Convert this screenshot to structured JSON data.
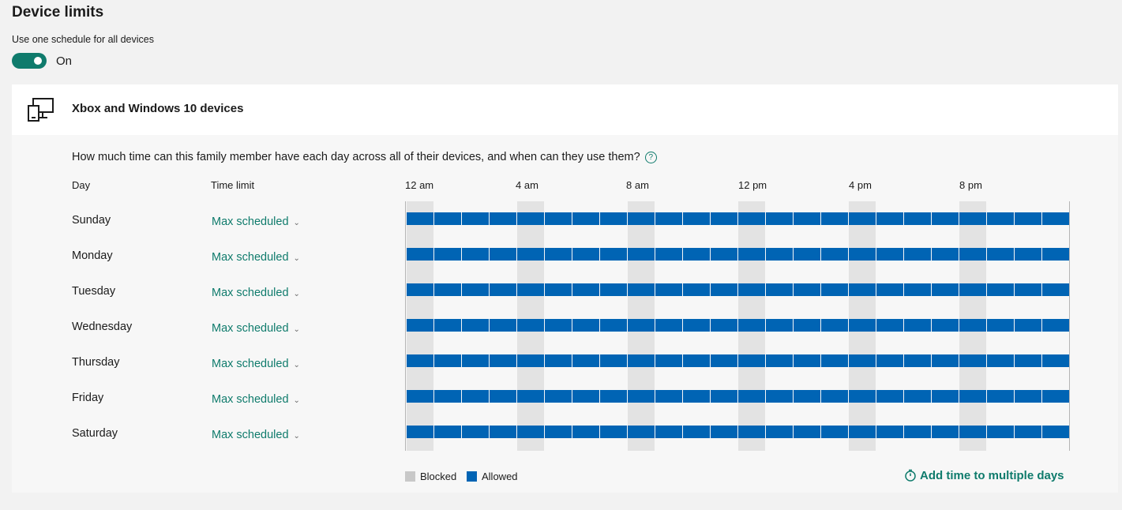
{
  "page": {
    "title": "Device limits"
  },
  "schedule_toggle": {
    "label": "Use one schedule for all devices",
    "state_label": "On",
    "on": true
  },
  "card": {
    "title": "Xbox and Windows 10 devices",
    "icon": "devices-icon",
    "question": "How much time can this family member have each day across all of their devices, and when can they use them?",
    "help_icon": "question-circle-icon"
  },
  "table": {
    "day_header": "Day",
    "limit_header": "Time limit",
    "time_ticks": [
      "12 am",
      "4 am",
      "8 am",
      "12 pm",
      "4 pm",
      "8 pm"
    ],
    "days": [
      {
        "name": "Sunday",
        "limit": "Max scheduled"
      },
      {
        "name": "Monday",
        "limit": "Max scheduled"
      },
      {
        "name": "Tuesday",
        "limit": "Max scheduled"
      },
      {
        "name": "Wednesday",
        "limit": "Max scheduled"
      },
      {
        "name": "Thursday",
        "limit": "Max scheduled"
      },
      {
        "name": "Friday",
        "limit": "Max scheduled"
      },
      {
        "name": "Saturday",
        "limit": "Max scheduled"
      }
    ],
    "slots_per_day": 24,
    "allowed_all_day": true
  },
  "legend": {
    "blocked": "Blocked",
    "allowed": "Allowed"
  },
  "colors": {
    "accent": "#0f7b6c",
    "allowed": "#0064b4",
    "blocked": "#c8c8c8"
  },
  "actions": {
    "add_time": "Add time to multiple days",
    "add_time_icon": "timer-icon"
  }
}
